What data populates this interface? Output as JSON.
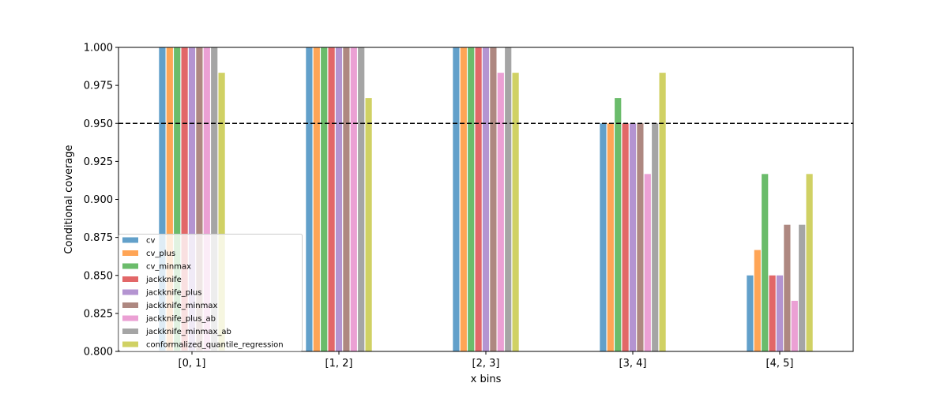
{
  "chart_data": {
    "type": "bar",
    "title": "",
    "xlabel": "x bins",
    "ylabel": "Conditional coverage",
    "categories": [
      "[0, 1]",
      "[1, 2]",
      "[2, 3]",
      "[3, 4]",
      "[4, 5]"
    ],
    "ylim": [
      0.8,
      1.0
    ],
    "yticks": [
      0.8,
      0.825,
      0.85,
      0.875,
      0.9,
      0.925,
      0.95,
      0.975,
      1.0
    ],
    "ytick_labels": [
      "0.800",
      "0.825",
      "0.850",
      "0.875",
      "0.900",
      "0.925",
      "0.950",
      "0.975",
      "1.000"
    ],
    "reference_line": {
      "value": 0.95,
      "style": "dashed",
      "color": "#000000"
    },
    "legend_position": "lower-left",
    "grid": false,
    "series": [
      {
        "name": "cv",
        "color": "#1f77b4",
        "values": [
          1.0,
          1.0,
          1.0,
          0.95,
          0.85
        ]
      },
      {
        "name": "cv_plus",
        "color": "#ff7f0e",
        "values": [
          1.0,
          1.0,
          1.0,
          0.95,
          0.8667
        ]
      },
      {
        "name": "cv_minmax",
        "color": "#2ca02c",
        "values": [
          1.0,
          1.0,
          1.0,
          0.9667,
          0.9167
        ]
      },
      {
        "name": "jackknife",
        "color": "#d62728",
        "values": [
          1.0,
          1.0,
          1.0,
          0.95,
          0.85
        ]
      },
      {
        "name": "jackknife_plus",
        "color": "#9467bd",
        "values": [
          1.0,
          1.0,
          1.0,
          0.95,
          0.85
        ]
      },
      {
        "name": "jackknife_minmax",
        "color": "#8c564b",
        "values": [
          1.0,
          1.0,
          1.0,
          0.95,
          0.8833
        ]
      },
      {
        "name": "jackknife_plus_ab",
        "color": "#e377c2",
        "values": [
          1.0,
          1.0,
          0.9833,
          0.9167,
          0.8333
        ]
      },
      {
        "name": "jackknife_minmax_ab",
        "color": "#7f7f7f",
        "values": [
          1.0,
          1.0,
          1.0,
          0.95,
          0.8833
        ]
      },
      {
        "name": "conformalized_quantile_regression",
        "color": "#bcbd22",
        "values": [
          0.9833,
          0.9667,
          0.9833,
          0.9833,
          0.9167
        ]
      }
    ]
  }
}
